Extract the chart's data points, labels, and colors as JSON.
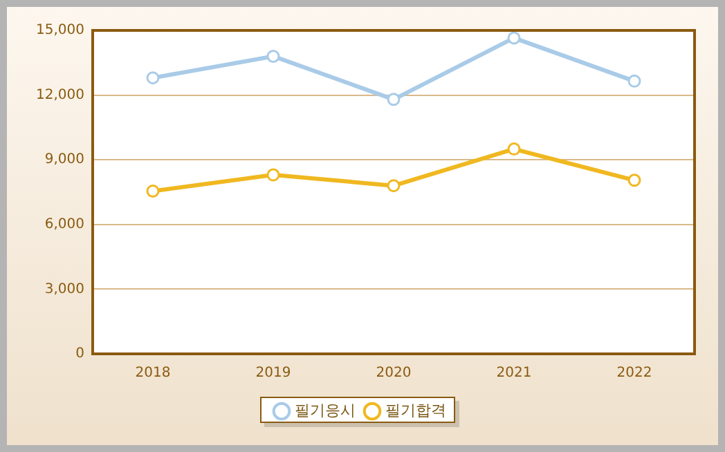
{
  "chart_data": {
    "type": "line",
    "categories": [
      "2018",
      "2019",
      "2020",
      "2021",
      "2022"
    ],
    "series": [
      {
        "name": "필기응시",
        "color": "#a9cbe8",
        "values": [
          12800,
          13800,
          11800,
          14650,
          12650
        ]
      },
      {
        "name": "필기합격",
        "color": "#f0b820",
        "values": [
          7550,
          8300,
          7800,
          9500,
          8050
        ]
      }
    ],
    "ylim": [
      0,
      15000
    ],
    "yticks": [
      {
        "value": 0,
        "label": "0"
      },
      {
        "value": 3000,
        "label": "3,000"
      },
      {
        "value": 6000,
        "label": "6,000"
      },
      {
        "value": 9000,
        "label": "9,000"
      },
      {
        "value": 12000,
        "label": "12,000"
      },
      {
        "value": 15000,
        "label": "15,000"
      }
    ],
    "grid": "y",
    "legend": "bottom",
    "marker": "circle",
    "line_style": "solid"
  }
}
